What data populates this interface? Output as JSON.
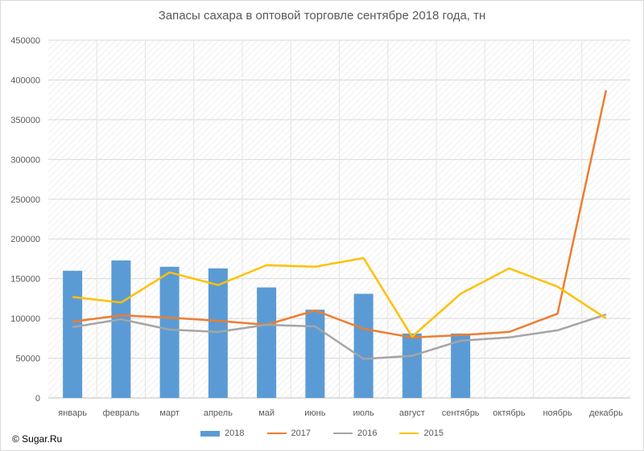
{
  "chart_data": {
    "type": "bar+line",
    "title": "Запасы сахара в оптовой торговле сентябре 2018 года, тн",
    "categories": [
      "январь",
      "февраль",
      "март",
      "апрель",
      "май",
      "июнь",
      "июль",
      "август",
      "сентябрь",
      "октябрь",
      "ноябрь",
      "декабрь"
    ],
    "ylim": [
      0,
      450000
    ],
    "yticks": [
      0,
      50000,
      100000,
      150000,
      200000,
      250000,
      300000,
      350000,
      400000,
      450000
    ],
    "grid": true,
    "legend": "bottom",
    "series": [
      {
        "name": "2018",
        "kind": "bar",
        "color": "#5b9bd5",
        "values": [
          160000,
          173000,
          165000,
          163000,
          139000,
          111000,
          131000,
          81000,
          81000,
          null,
          null,
          null
        ]
      },
      {
        "name": "2017",
        "kind": "line",
        "color": "#ed7d31",
        "values": [
          96000,
          104000,
          101000,
          97000,
          92000,
          110000,
          87000,
          76000,
          79000,
          83000,
          106000,
          387000
        ]
      },
      {
        "name": "2016",
        "kind": "line",
        "color": "#a5a5a5",
        "values": [
          89000,
          99000,
          86000,
          83000,
          92000,
          90000,
          49000,
          53000,
          72000,
          76000,
          85000,
          105000
        ]
      },
      {
        "name": "2015",
        "kind": "line",
        "color": "#ffc000",
        "values": [
          127000,
          120000,
          158000,
          142000,
          167000,
          165000,
          176000,
          77000,
          131000,
          163000,
          140000,
          100000
        ]
      }
    ]
  },
  "copyright": "© Sugar.Ru"
}
